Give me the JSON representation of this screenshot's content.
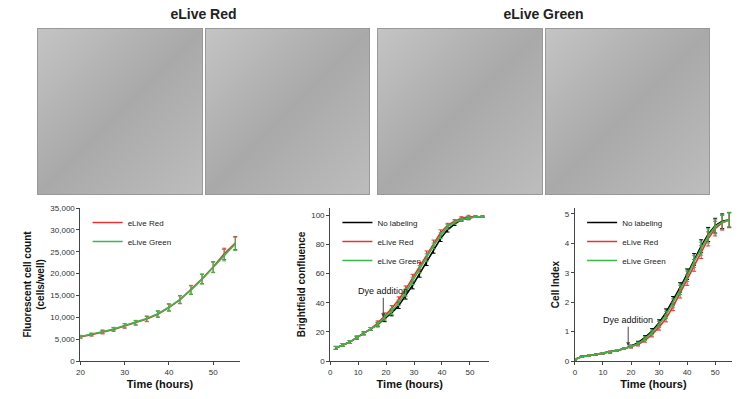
{
  "panel_headers": [
    "eLive Red",
    "eLive Green"
  ],
  "chart_data": [
    {
      "type": "line",
      "x_label": "Time (hours)",
      "y_label": "Fluorescent cell count (cells/well)",
      "x": [
        20,
        22.5,
        25,
        27.5,
        30,
        32.5,
        35,
        37.5,
        40,
        42.5,
        45,
        47.5,
        50,
        52.5,
        55
      ],
      "series": [
        {
          "name": "eLive Red",
          "color": "#e8312f",
          "values": [
            5500,
            6000,
            6600,
            7200,
            8000,
            8700,
            9600,
            10700,
            12200,
            14000,
            16300,
            18800,
            21500,
            24500,
            27000
          ],
          "errors": [
            300,
            300,
            400,
            400,
            500,
            500,
            600,
            700,
            800,
            900,
            1000,
            1100,
            1200,
            1300,
            1500
          ]
        },
        {
          "name": "eLive Green",
          "color": "#3cb54a",
          "values": [
            5600,
            6100,
            6700,
            7300,
            8100,
            8800,
            9700,
            10800,
            12300,
            14100,
            16200,
            18700,
            21400,
            24200,
            26800
          ],
          "errors": [
            300,
            300,
            400,
            400,
            500,
            500,
            600,
            700,
            800,
            900,
            1000,
            1100,
            1200,
            1300,
            1500
          ]
        }
      ],
      "xlim": [
        20,
        56
      ],
      "xticks": [
        20,
        30,
        40,
        50
      ],
      "ylim": [
        0,
        35000
      ],
      "yticks": [
        0,
        {
          "value": 5000,
          "label": "5,000"
        },
        {
          "value": 10000,
          "label": "10,000"
        },
        {
          "value": 15000,
          "label": "15,000"
        },
        {
          "value": 20000,
          "label": "20,000"
        },
        {
          "value": 25000,
          "label": "25,000"
        },
        {
          "value": 30000,
          "label": "30,000"
        },
        {
          "value": 35000,
          "label": "35,000"
        }
      ],
      "legend": "upper left",
      "grid": false
    },
    {
      "type": "line",
      "x_label": "Time (hours)",
      "y_label": "Brightfield confluence",
      "x": [
        2,
        4.5,
        7,
        9.5,
        12,
        14.5,
        17,
        19.5,
        22,
        24.5,
        27,
        29.5,
        32,
        34.5,
        37,
        39.5,
        42,
        44.5,
        47,
        49.5,
        52,
        54.5
      ],
      "series": [
        {
          "name": "No labeling",
          "color": "#000000",
          "values": [
            9,
            11,
            13,
            16,
            19,
            22,
            25,
            29,
            33,
            38,
            45,
            52,
            60,
            68,
            76,
            84,
            90,
            94,
            97,
            98,
            99,
            99
          ],
          "errors": [
            1,
            1,
            1,
            1,
            1,
            1,
            1.5,
            2,
            2,
            2,
            2.5,
            2.5,
            2.5,
            2.5,
            2,
            2,
            1.5,
            1,
            1,
            1,
            0.5,
            0.5
          ]
        },
        {
          "name": "eLive Red",
          "color": "#e8312f",
          "values": [
            9,
            11,
            13,
            16,
            19,
            22,
            26,
            31,
            36,
            42,
            49,
            57,
            65,
            73,
            81,
            88,
            93,
            96,
            98,
            99,
            99,
            99
          ],
          "errors": [
            1,
            1,
            1,
            1,
            1,
            1,
            1.5,
            2,
            2,
            2,
            2.5,
            2.5,
            2.5,
            2.5,
            2,
            2,
            1.5,
            1,
            1,
            1,
            0.5,
            0.5
          ]
        },
        {
          "name": "eLive Green",
          "color": "#3cb54a",
          "values": [
            9,
            11,
            13,
            16,
            19,
            22,
            25,
            30,
            34,
            40,
            47,
            55,
            63,
            71,
            79,
            86,
            92,
            95,
            97,
            98,
            99,
            99
          ],
          "errors": [
            1,
            1,
            1,
            1,
            1,
            1,
            1.5,
            2,
            2,
            2,
            2.5,
            2.5,
            2.5,
            2.5,
            2,
            2,
            1.5,
            1,
            1,
            1,
            0.5,
            0.5
          ]
        }
      ],
      "xlim": [
        0,
        57
      ],
      "xticks": [
        0,
        10,
        20,
        30,
        40,
        50
      ],
      "ylim": [
        0,
        105
      ],
      "yticks": [
        0,
        20,
        40,
        60,
        80,
        100
      ],
      "annotations": [
        {
          "text": "Dye addition",
          "x": 19,
          "y": 30
        }
      ],
      "legend": "upper left",
      "grid": false
    },
    {
      "type": "line",
      "x_label": "Time (hours)",
      "y_label": "Cell Index",
      "x": [
        0,
        2.5,
        5,
        7.5,
        10,
        12.5,
        15,
        17.5,
        20,
        22.5,
        25,
        27.5,
        30,
        32.5,
        35,
        37.5,
        40,
        42.5,
        45,
        47.5,
        50,
        52.5,
        55
      ],
      "series": [
        {
          "name": "No labeling",
          "color": "#000000",
          "values": [
            0.05,
            0.15,
            0.18,
            0.22,
            0.26,
            0.3,
            0.36,
            0.42,
            0.5,
            0.62,
            0.8,
            1.02,
            1.3,
            1.65,
            2.05,
            2.5,
            2.95,
            3.45,
            3.9,
            4.3,
            4.6,
            4.75,
            4.8
          ],
          "errors": [
            0.02,
            0.02,
            0.02,
            0.02,
            0.02,
            0.03,
            0.03,
            0.03,
            0.04,
            0.05,
            0.06,
            0.08,
            0.1,
            0.12,
            0.14,
            0.16,
            0.18,
            0.2,
            0.22,
            0.24,
            0.25,
            0.25,
            0.25
          ]
        },
        {
          "name": "eLive Red",
          "color": "#e8312f",
          "values": [
            0.05,
            0.15,
            0.18,
            0.22,
            0.26,
            0.3,
            0.36,
            0.42,
            0.48,
            0.56,
            0.7,
            0.9,
            1.15,
            1.45,
            1.85,
            2.3,
            2.75,
            3.25,
            3.7,
            4.15,
            4.5,
            4.7,
            4.78
          ],
          "errors": [
            0.02,
            0.02,
            0.02,
            0.02,
            0.02,
            0.03,
            0.03,
            0.03,
            0.04,
            0.05,
            0.06,
            0.08,
            0.1,
            0.12,
            0.14,
            0.16,
            0.18,
            0.2,
            0.22,
            0.24,
            0.25,
            0.25,
            0.25
          ]
        },
        {
          "name": "eLive Green",
          "color": "#3cb54a",
          "values": [
            0.05,
            0.15,
            0.18,
            0.22,
            0.26,
            0.3,
            0.36,
            0.42,
            0.49,
            0.59,
            0.76,
            0.97,
            1.24,
            1.57,
            1.97,
            2.42,
            2.88,
            3.38,
            3.82,
            4.25,
            4.57,
            4.72,
            4.8
          ],
          "errors": [
            0.02,
            0.02,
            0.02,
            0.02,
            0.02,
            0.03,
            0.03,
            0.03,
            0.04,
            0.05,
            0.06,
            0.08,
            0.1,
            0.12,
            0.14,
            0.16,
            0.18,
            0.2,
            0.22,
            0.24,
            0.25,
            0.25,
            0.25
          ]
        }
      ],
      "xlim": [
        0,
        56
      ],
      "xticks": [
        0,
        10,
        20,
        30,
        40,
        50
      ],
      "ylim": [
        0,
        5.2
      ],
      "yticks": [
        0,
        1,
        2,
        3,
        4,
        5
      ],
      "annotations": [
        {
          "text": "Dye addition",
          "x": 19,
          "y": 0.5
        }
      ],
      "legend": "upper left",
      "grid": false
    }
  ]
}
